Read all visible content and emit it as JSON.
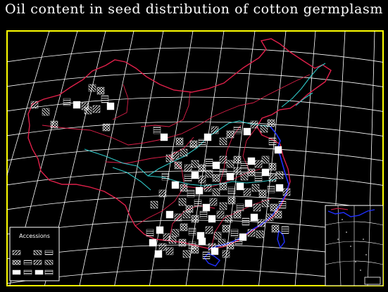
{
  "title": "Oil content in seed distribution of cotton germplasm",
  "legend": {
    "title": "Accessions",
    "items": [
      "",
      "",
      "",
      "",
      "",
      "",
      "",
      "",
      ""
    ]
  },
  "colors": {
    "background": "#000000",
    "frame": "#ffff00",
    "graticule": "#ffffff",
    "border": "#e0204a",
    "river": "#30c8c8",
    "coast": "#2030ff",
    "cells": "#ffffff"
  },
  "icons": [
    "hatch-cell-icon",
    "legend-swatch-icon"
  ]
}
